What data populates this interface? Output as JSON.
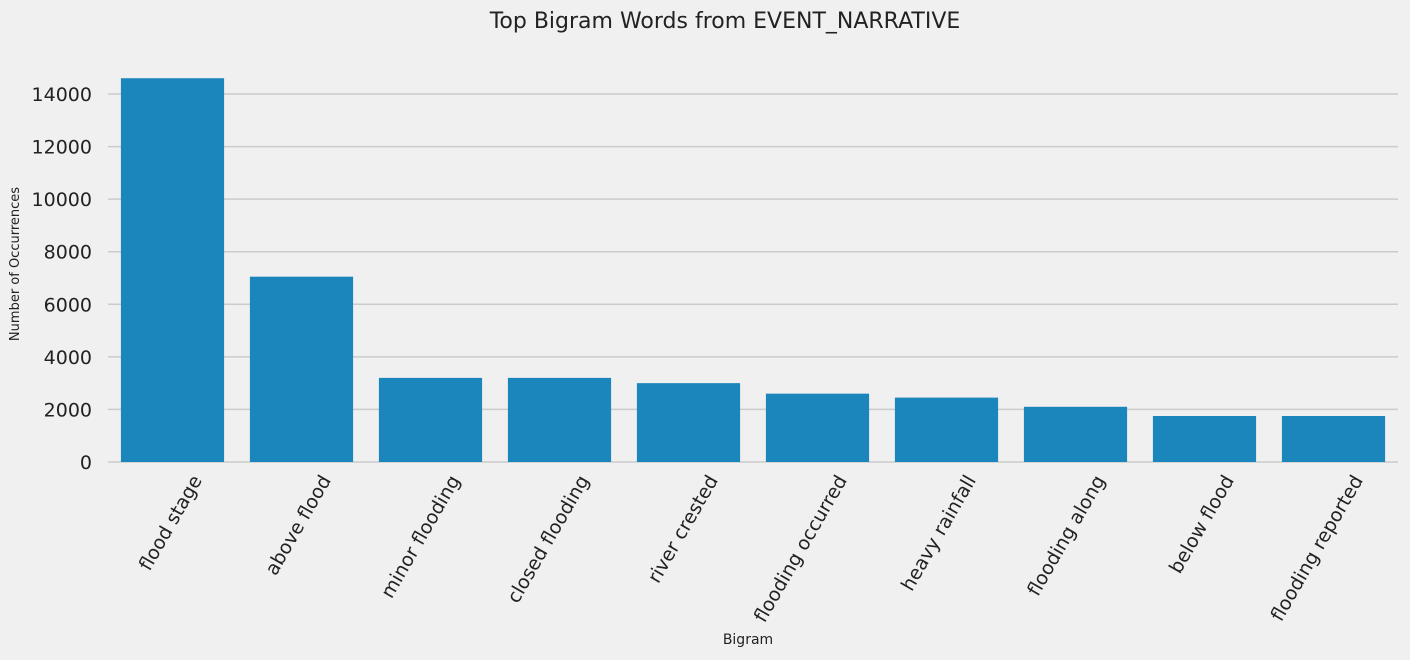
{
  "chart_data": {
    "type": "bar",
    "title": "Top Bigram Words from EVENT_NARRATIVE",
    "xlabel": "Bigram",
    "ylabel": "Number of Occurrences",
    "categories": [
      "flood stage",
      "above flood",
      "minor flooding",
      "closed flooding",
      "river crested",
      "flooding occurred",
      "heavy rainfall",
      "flooding along",
      "below flood",
      "flooding reported"
    ],
    "values": [
      14600,
      7050,
      3200,
      3200,
      3000,
      2600,
      2450,
      2100,
      1750,
      1750
    ],
    "ylim": [
      0,
      15000
    ],
    "yticks": [
      0,
      2000,
      4000,
      6000,
      8000,
      10000,
      12000,
      14000
    ],
    "grid": "horizontal",
    "legend": "none",
    "bar_color": "#1a86bb",
    "background_color": "#f0f0f0",
    "grid_color": "#cbcbcb"
  }
}
